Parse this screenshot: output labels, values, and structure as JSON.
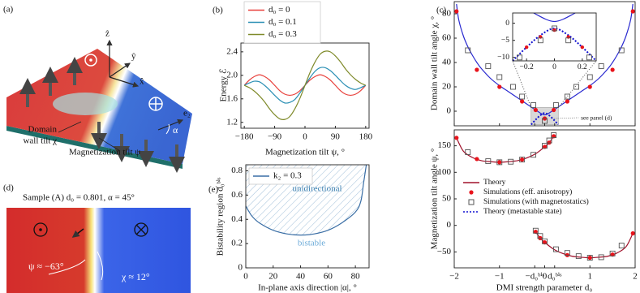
{
  "illustration": {
    "label": "(a)",
    "axis_labels": [
      "ẑ",
      "ŷ",
      "x̂",
      "e₂",
      "α"
    ],
    "wall_label": [
      "Domain",
      "wall tilt χ"
    ],
    "magnetization_label": "Magnetization tilt ψ"
  },
  "snapshot": {
    "label": "(d)",
    "title": "Sample (A) d₀ = 0.801, α = 45°",
    "psi_note": "ψ ≈ −63°",
    "chi_note": "χ ≈ 12°"
  },
  "chart_data": [
    {
      "type": "line",
      "label": "(b)",
      "xlabel": "Magnetization tilt ψ, °",
      "ylabel": "Energy ℰ",
      "legend": "upper left",
      "x": [
        -180,
        -165,
        -150,
        -135,
        -120,
        -105,
        -90,
        -75,
        -60,
        -45,
        -30,
        -15,
        0,
        15,
        30,
        45,
        60,
        75,
        90,
        105,
        120,
        135,
        150,
        165,
        180
      ],
      "xlim": [
        -190,
        190
      ],
      "ylim": [
        1.1,
        2.55
      ],
      "xticks": [
        {
          "value": -180,
          "label": "−180"
        },
        {
          "value": -90,
          "label": "−90"
        },
        0,
        90,
        180
      ],
      "yticks": [
        1.2,
        1.6,
        {
          "value": 2,
          "label": "2.0"
        },
        2.4
      ],
      "series": [
        {
          "name": "d₀ = 0",
          "color": "#e8413c",
          "values": [
            1.83,
            1.92,
            1.98,
            2.01,
            1.98,
            1.92,
            1.83,
            1.74,
            1.68,
            1.66,
            1.68,
            1.74,
            1.83,
            1.92,
            1.98,
            2.01,
            1.98,
            1.92,
            1.83,
            1.74,
            1.68,
            1.66,
            1.68,
            1.74,
            1.83
          ]
        },
        {
          "name": "d₀ = 0.1",
          "color": "#2a8fb4",
          "values": [
            1.83,
            1.87,
            1.9,
            1.89,
            1.83,
            1.75,
            1.66,
            1.58,
            1.53,
            1.54,
            1.59,
            1.7,
            1.83,
            1.96,
            2.07,
            2.13,
            2.13,
            2.08,
            2.0,
            1.91,
            1.83,
            1.78,
            1.76,
            1.79,
            1.83
          ]
        },
        {
          "name": "d₀ = 0.3",
          "color": "#7f8a2a",
          "values": [
            1.83,
            1.79,
            1.73,
            1.65,
            1.55,
            1.43,
            1.33,
            1.26,
            1.25,
            1.3,
            1.43,
            1.61,
            1.83,
            2.05,
            2.23,
            2.36,
            2.41,
            2.4,
            2.33,
            2.23,
            2.11,
            2.01,
            1.93,
            1.87,
            1.83
          ]
        }
      ]
    },
    {
      "type": "line",
      "label": "(c)",
      "ylabel": "Domain wall tilt angle χ, °",
      "annotation": "see panel (d)",
      "xlim": [
        -2,
        2
      ],
      "ylim": [
        -12,
        90
      ],
      "yticks": [
        0,
        20,
        40,
        60,
        80
      ],
      "series": [
        {
          "color": "#2a2ad0",
          "marker": "line",
          "x": [
            -1.95,
            -1.9,
            -1.8,
            -1.7,
            -1.6,
            -1.5,
            -1.4,
            -1.2,
            -1,
            -0.8,
            -0.6,
            -0.4,
            -0.2,
            0,
            0.2,
            0.4,
            0.6,
            0.8,
            1,
            1.2,
            1.4,
            1.5,
            1.6,
            1.7,
            1.8,
            1.9,
            1.95
          ],
          "values": [
            88,
            75,
            62,
            53,
            46,
            40,
            35,
            27,
            21,
            16,
            11,
            6,
            1,
            -3,
            1,
            6,
            11,
            16,
            21,
            27,
            35,
            40,
            46,
            53,
            62,
            75,
            88
          ]
        },
        {
          "color": "#e8131b",
          "marker": "dot",
          "x": [
            -1.95,
            -1.5,
            -1,
            -0.5,
            -0.2,
            0,
            0.2,
            0.5,
            1,
            1.5,
            1.95
          ],
          "values": [
            82,
            34,
            20,
            8,
            1,
            -6,
            1,
            8,
            20,
            34,
            82
          ]
        },
        {
          "color": "#555555",
          "marker": "square",
          "x": [
            -1.7,
            -1.25,
            -1,
            -0.7,
            -0.5,
            -0.25,
            0,
            0.25,
            0.5,
            0.7,
            1,
            1.25,
            1.7
          ],
          "values": [
            50,
            37,
            28,
            20,
            12,
            5,
            -8,
            5,
            12,
            20,
            28,
            37,
            50
          ]
        },
        {
          "name": "Theory (metastable state)",
          "color": "#1010d0",
          "marker": "dotted",
          "x": [
            -0.3,
            -0.2,
            -0.1,
            0,
            0.1,
            0.2,
            0.3
          ],
          "values": [
            -11,
            -7,
            -3.5,
            -1.5,
            -3.5,
            -7,
            -11
          ]
        }
      ]
    },
    {
      "type": "line",
      "xlim": [
        -0.3,
        0.3
      ],
      "ylim": [
        -11,
        3
      ],
      "xticks": [
        {
          "value": -0.2,
          "label": "−0.2"
        },
        0,
        0.2
      ],
      "yticks": [
        {
          "value": -10,
          "label": "−10"
        },
        {
          "value": -5,
          "label": "−5"
        },
        0
      ],
      "series": [
        {
          "color": "#2a2ad0",
          "marker": "line",
          "x": [
            -0.15,
            0,
            0.15
          ],
          "values": [
            3,
            0.5,
            3
          ]
        },
        {
          "color": "#1010d0",
          "marker": "dotted",
          "x": [
            -0.3,
            -0.2,
            -0.1,
            0,
            0.1,
            0.2,
            0.3
          ],
          "values": [
            -11,
            -7,
            -3.5,
            -1.5,
            -3.5,
            -7,
            -11
          ]
        },
        {
          "color": "#e8131b",
          "marker": "dot",
          "x": [
            -0.2,
            -0.1,
            0,
            0.1,
            0.2
          ],
          "values": [
            -7,
            -4,
            -2,
            -4,
            -7
          ]
        },
        {
          "color": "#555555",
          "marker": "square",
          "x": [
            -0.25,
            -0.1,
            0,
            0.1,
            0.25
          ],
          "values": [
            -10,
            -5,
            -1.5,
            -5,
            -10
          ]
        }
      ]
    },
    {
      "type": "line",
      "xlabel": "DMI strength parameter d₀",
      "ylabel": "Magnetization tilt angle ψ, °",
      "legend": "center",
      "xlim": [
        -2,
        2
      ],
      "ylim": [
        -80,
        180
      ],
      "xticks": [
        {
          "value": -2,
          "label": "−2"
        },
        {
          "value": -1,
          "label": "−1"
        },
        {
          "value": -0.22,
          "label": "−d₀ᵇⁱˢ"
        },
        0,
        {
          "value": 0.22,
          "label": "d₀ᵇⁱˢ"
        },
        1,
        2
      ],
      "yticks": [
        {
          "value": -50,
          "label": "−50"
        },
        0,
        50,
        100,
        150
      ],
      "series": [
        {
          "name": "Theory",
          "color": "#a0102a",
          "marker": "line",
          "x": [
            -1.95,
            -1.8,
            -1.6,
            -1.4,
            -1.2,
            -1,
            -0.8,
            -0.6,
            -0.4,
            -0.2,
            0,
            0.1,
            0.2,
            null,
            -0.2,
            -0.1,
            0,
            0.2,
            0.4,
            0.6,
            0.8,
            1,
            1.2,
            1.4,
            1.6,
            1.8,
            1.95
          ],
          "values": [
            165,
            140,
            128,
            122,
            120,
            119,
            120,
            122,
            127,
            135,
            148,
            156,
            168,
            null,
            -12,
            -24,
            -32,
            -45,
            -53,
            -58,
            -60,
            -61,
            -60,
            -58,
            -52,
            -40,
            -15
          ]
        },
        {
          "name": "Simulations (eff. anisotropy)",
          "color": "#e8131b",
          "marker": "dot",
          "x": [
            -1.95,
            -1.5,
            -1,
            -0.5,
            0,
            0.1,
            0.2,
            -0.2,
            -0.1,
            0,
            0.5,
            1,
            1.5,
            1.95
          ],
          "values": [
            165,
            125,
            119,
            124,
            148,
            156,
            168,
            -12,
            -24,
            -32,
            -56,
            -61,
            -55,
            -15
          ]
        },
        {
          "name": "Simulations (with magnetostatics)",
          "color": "#555555",
          "marker": "square",
          "x": [
            -1.7,
            -1.25,
            -1,
            -0.75,
            -0.5,
            -0.25,
            0,
            0.1,
            0.2,
            -0.2,
            -0.1,
            0,
            0.25,
            0.5,
            0.75,
            1,
            1.25,
            1.5,
            1.7
          ],
          "values": [
            138,
            121,
            119,
            120,
            124,
            133,
            150,
            160,
            170,
            -10,
            -20,
            -30,
            -45,
            -52,
            -58,
            -61,
            -60,
            -53,
            -38
          ]
        }
      ]
    },
    {
      "type": "region",
      "label": "(e)",
      "xlabel": "In-plane axis direction |α|, °",
      "ylabel": "Bistability region d₀ᵇⁱˢ",
      "region_labels": [
        "unidirectional",
        "bistable"
      ],
      "legend": "upper left",
      "x": [
        0,
        2,
        5,
        10,
        20,
        30,
        40,
        50,
        60,
        70,
        80,
        84,
        86,
        88
      ],
      "xlim": [
        0,
        90
      ],
      "ylim": [
        0,
        0.85
      ],
      "xticks": [
        0,
        20,
        40,
        60,
        80
      ],
      "yticks": [
        0,
        0.2,
        0.4,
        0.6,
        0.8
      ],
      "series": [
        {
          "name": "k₂ = 0.3",
          "color": "#3a6ea5",
          "values": [
            0.51,
            0.47,
            0.42,
            0.37,
            0.31,
            0.28,
            0.27,
            0.28,
            0.31,
            0.37,
            0.46,
            0.55,
            0.7,
            0.85
          ]
        }
      ]
    }
  ]
}
